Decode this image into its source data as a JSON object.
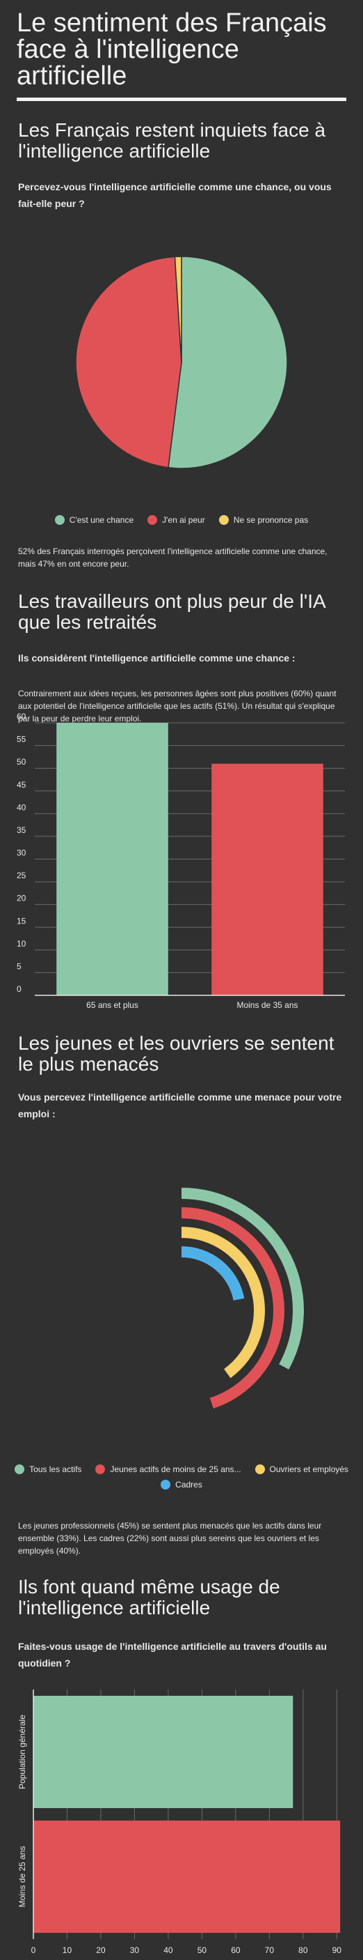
{
  "page": {
    "title": "Le sentiment des Français face à l'intelligence artificielle"
  },
  "sections": [
    {
      "title": "Les Français restent inquiets face à l'intelligence artificielle",
      "question": "Percevez-vous l'intelligence artificielle comme une chance, ou vous fait-elle peur ?",
      "note": "52% des Français interrogés perçoivent l'intelligence artificielle comme une chance, mais 47% en ont encore peur."
    },
    {
      "title": "Les travailleurs ont plus peur de l'IA que les retraités",
      "question": "Ils considèrent l'intelligence artificielle comme une chance :",
      "note": "Contrairement aux idées reçues, les personnes âgées sont plus positives (60%) quant aux potentiel de l'intelligence artificielle que les actifs (51%). Un résultat qui s'explique par la peur de perdre leur emploi."
    },
    {
      "title": "Les jeunes et les ouvriers se sentent le plus menacés",
      "question": "Vous percevez l'intelligence artificielle comme une menace pour votre emploi :",
      "note": "Les jeunes professionnels (45%) se sentent plus menacés que les actifs dans leur ensemble (33%). Les cadres (22%) sont aussi plus sereins que les ouvriers et les employés (40%)."
    },
    {
      "title": "Ils font quand même usage de l'intelligence artificielle",
      "question": "Faites-vous usage de l'intelligence artificielle au travers d'outils au quotidien ?"
    }
  ],
  "chart_data": [
    {
      "type": "pie",
      "categories": [
        "C'est une chance",
        "J'en ai peur",
        "Ne se prononce pas"
      ],
      "values": [
        52,
        47,
        1
      ],
      "colors": [
        "#8cc8a8",
        "#e05256",
        "#f5cf67"
      ],
      "legend": "bottom"
    },
    {
      "type": "bar",
      "categories": [
        "65 ans et plus",
        "Moins de 35 ans"
      ],
      "values": [
        60,
        51
      ],
      "colors": [
        "#8cc8a8",
        "#e05256"
      ],
      "yticks": [
        "0",
        "5",
        "10",
        "15",
        "20",
        "25",
        "30",
        "35",
        "40",
        "45",
        "50",
        "55",
        "60"
      ],
      "ylim": [
        0,
        62
      ],
      "grid": true
    },
    {
      "type": "radial-bar",
      "categories": [
        "Tous les actifs",
        "Jeunes actifs de moins de 25 ans...",
        "Ouvriers et employés",
        "Cadres"
      ],
      "values": [
        33,
        45,
        40,
        22
      ],
      "colors": [
        "#8cc8a8",
        "#e05256",
        "#f5cf67",
        "#4fb0e8"
      ],
      "max": 100,
      "legend": "bottom"
    },
    {
      "type": "bar-horizontal",
      "categories": [
        "Population générale",
        "Moins de 25 ans"
      ],
      "values": [
        77,
        91
      ],
      "colors": [
        "#8cc8a8",
        "#e05256"
      ],
      "xticks": [
        "0",
        "10",
        "20",
        "30",
        "40",
        "50",
        "60",
        "70",
        "80",
        "90"
      ],
      "xlim": [
        0,
        92
      ],
      "grid": true
    }
  ]
}
